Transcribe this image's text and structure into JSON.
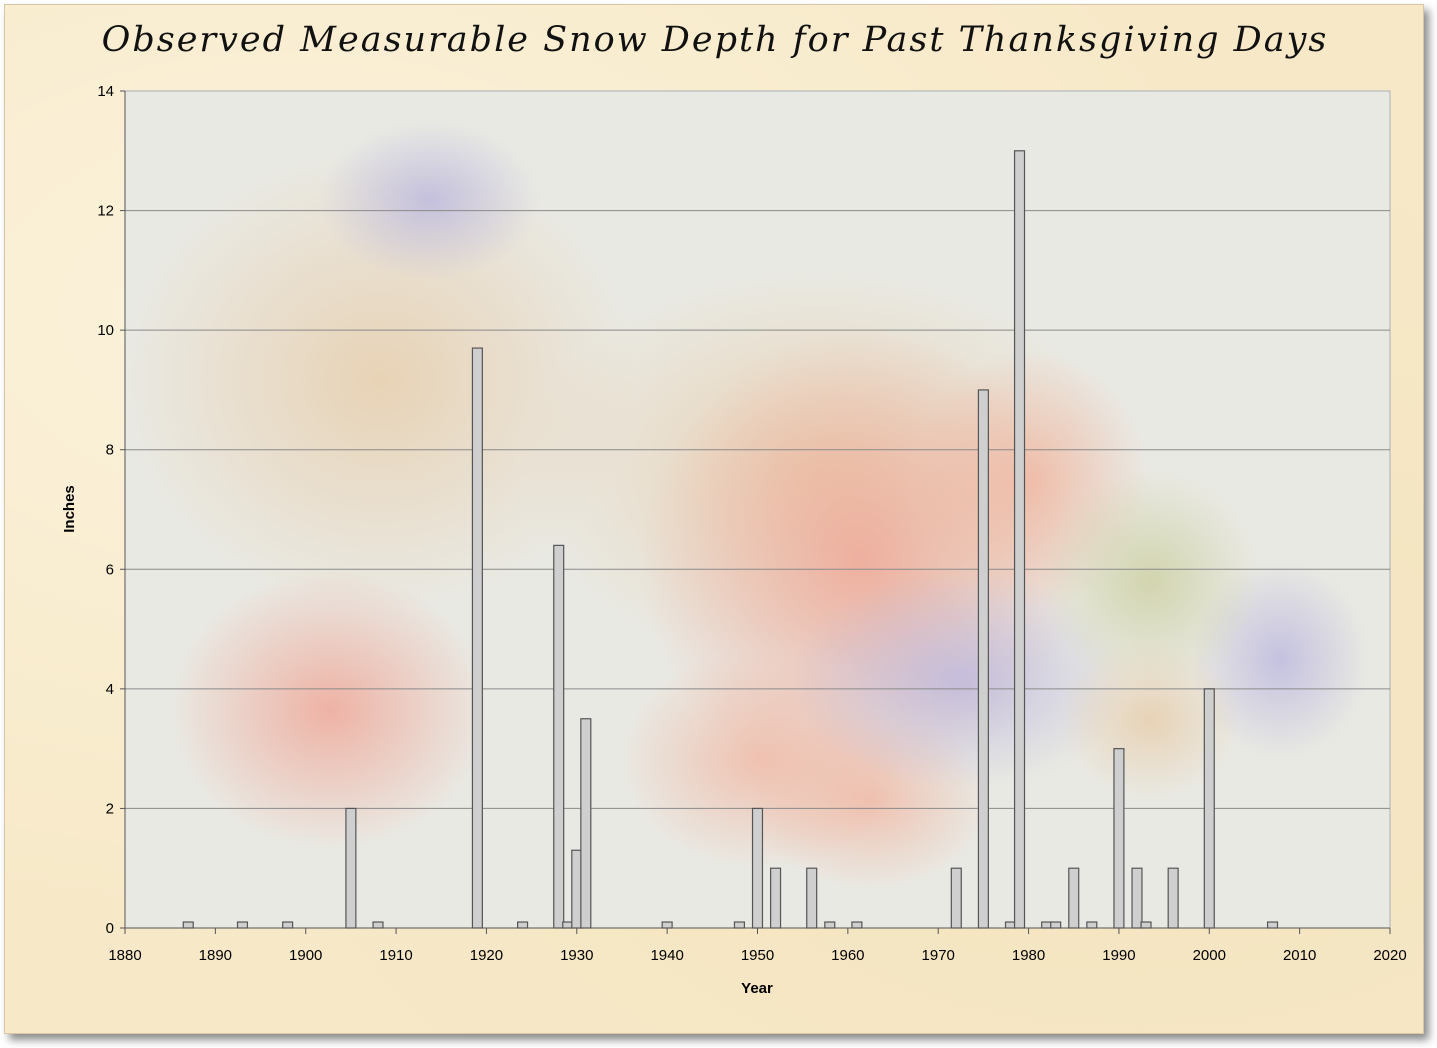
{
  "chart_data": {
    "type": "bar",
    "title": "Observed Measurable Snow Depth for Past Thanksgiving Days",
    "xlabel": "Year",
    "ylabel": "Inches",
    "xlim": [
      1880,
      2020
    ],
    "ylim": [
      0,
      14
    ],
    "x_ticks": [
      "1880",
      "1890",
      "1900",
      "1910",
      "1920",
      "1930",
      "1940",
      "1950",
      "1960",
      "1970",
      "1980",
      "1990",
      "2000",
      "2010",
      "2020"
    ],
    "y_ticks": [
      "0",
      "2",
      "4",
      "6",
      "8",
      "10",
      "12",
      "14"
    ],
    "grid": "horizontal",
    "legend": "none",
    "bar_color": "#cfcfcf",
    "x": [
      1887,
      1893,
      1898,
      1905,
      1908,
      1919,
      1924,
      1928,
      1929,
      1930,
      1931,
      1940,
      1948,
      1950,
      1952,
      1956,
      1958,
      1961,
      1972,
      1975,
      1978,
      1979,
      1982,
      1983,
      1985,
      1987,
      1990,
      1992,
      1993,
      1996,
      2000,
      2007
    ],
    "values": [
      0.1,
      0.1,
      0.1,
      2,
      0.1,
      9.7,
      0.1,
      6.4,
      0.1,
      1.3,
      3.5,
      0.1,
      0.1,
      2,
      1,
      1,
      0.1,
      0.1,
      1,
      9,
      0.1,
      13,
      0.1,
      0.1,
      1,
      0.1,
      3,
      1,
      0.1,
      1,
      4,
      0.1
    ]
  }
}
